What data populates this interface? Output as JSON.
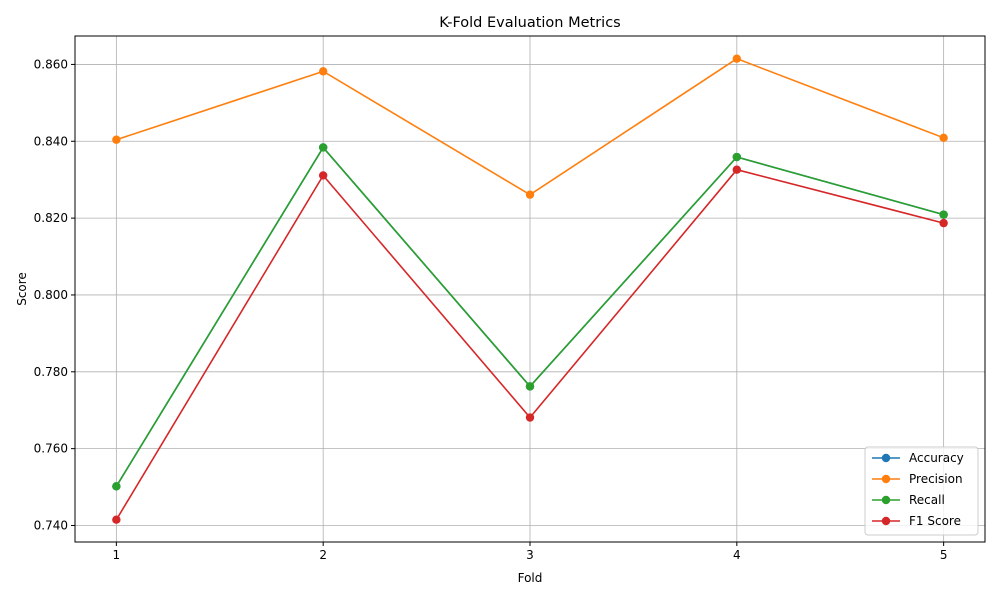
{
  "chart_data": {
    "type": "line",
    "title": "K-Fold Evaluation Metrics",
    "xlabel": "Fold",
    "ylabel": "Score",
    "x": [
      1,
      2,
      3,
      4,
      5
    ],
    "xticks": [
      "1",
      "2",
      "3",
      "4",
      "5"
    ],
    "yticks": [
      "0.740",
      "0.760",
      "0.780",
      "0.800",
      "0.820",
      "0.840",
      "0.860"
    ],
    "ylim": [
      0.7357,
      0.8674
    ],
    "xlim": [
      0.8,
      5.2
    ],
    "grid": true,
    "legend_position": "lower-right",
    "series": [
      {
        "name": "Accuracy",
        "color": "#1f77b4",
        "values": [
          0.7502,
          0.8384,
          0.7762,
          0.8359,
          0.8209
        ]
      },
      {
        "name": "Precision",
        "color": "#ff7f0e",
        "values": [
          0.8404,
          0.8582,
          0.8261,
          0.8615,
          0.8409
        ]
      },
      {
        "name": "Recall",
        "color": "#2ca02c",
        "values": [
          0.7502,
          0.8384,
          0.7762,
          0.8359,
          0.8209
        ]
      },
      {
        "name": "F1 Score",
        "color": "#d62728",
        "values": [
          0.7415,
          0.8311,
          0.7681,
          0.8326,
          0.8187
        ]
      }
    ]
  }
}
